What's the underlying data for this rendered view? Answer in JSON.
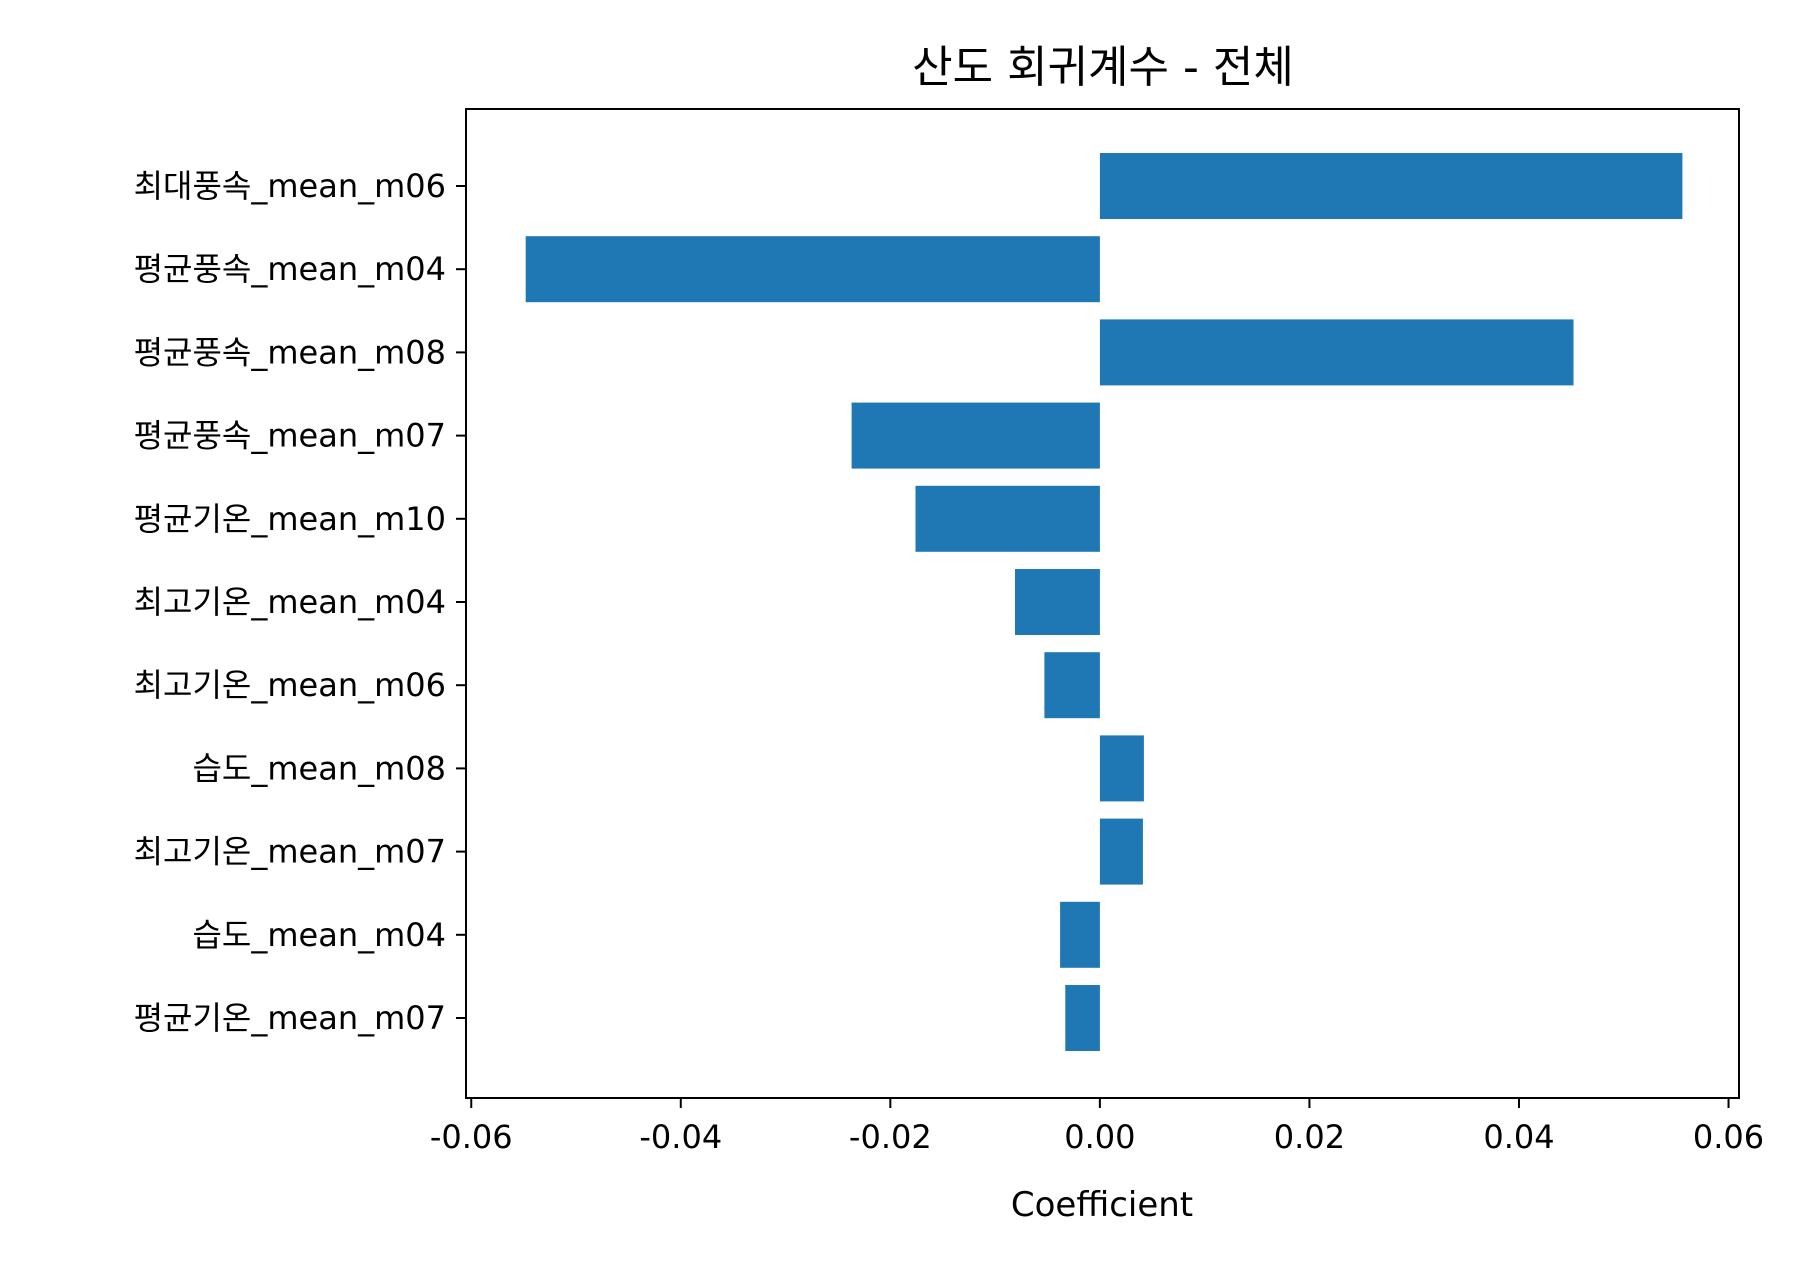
{
  "chart_data": {
    "type": "bar",
    "orientation": "horizontal",
    "title": "산도 회귀계수 - 전체",
    "xlabel": "Coefficient",
    "ylabel": "",
    "xlim": [
      -0.0605,
      0.061
    ],
    "xticks": [
      -0.06,
      -0.04,
      -0.02,
      0.0,
      0.02,
      0.04,
      0.06
    ],
    "xtick_labels": [
      "-0.06",
      "-0.04",
      "-0.02",
      "0.00",
      "0.02",
      "0.04",
      "0.06"
    ],
    "grid": false,
    "bar_color": "#1f77b4",
    "categories": [
      "최대풍속_mean_m06",
      "평균풍속_mean_m04",
      "평균풍속_mean_m08",
      "평균풍속_mean_m07",
      "평균기온_mean_m10",
      "최고기온_mean_m04",
      "최고기온_mean_m06",
      "습도_mean_m08",
      "최고기온_mean_m07",
      "습도_mean_m04",
      "평균기온_mean_m07"
    ],
    "values": [
      0.0556,
      -0.0548,
      0.0452,
      -0.0237,
      -0.0176,
      -0.0081,
      -0.0053,
      0.0042,
      0.0041,
      -0.0038,
      -0.0033
    ]
  }
}
